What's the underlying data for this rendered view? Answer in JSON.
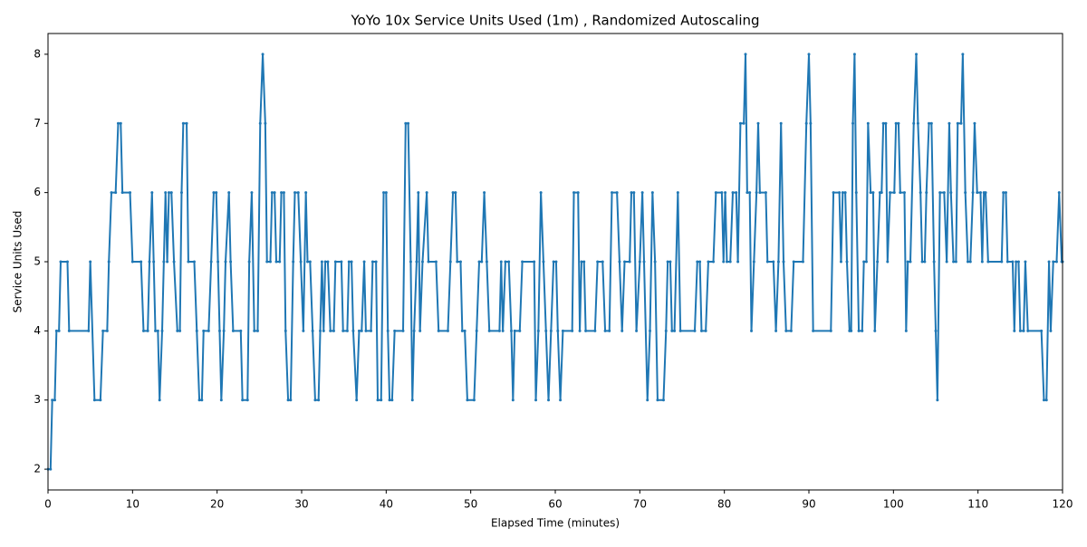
{
  "chart_data": {
    "type": "line",
    "title": "YoYo 10x Service Units Used (1m) , Randomized Autoscaling",
    "xlabel": "Elapsed Time (minutes)",
    "ylabel": "Service Units Used",
    "xlim": [
      0,
      120
    ],
    "ylim": [
      1.7,
      8.3
    ],
    "xticks": [
      0,
      10,
      20,
      30,
      40,
      50,
      60,
      70,
      80,
      90,
      100,
      110,
      120
    ],
    "yticks": [
      2,
      3,
      4,
      5,
      6,
      7,
      8
    ],
    "grid": false,
    "series": [
      {
        "color": "#1f77b4",
        "x": [
          0,
          0.3,
          0.5,
          0.8,
          1.0,
          1.3,
          1.5,
          2.3,
          2.5,
          4.8,
          5.0,
          5.5,
          6.2,
          6.5,
          7.0,
          7.2,
          7.5,
          8.0,
          8.3,
          8.6,
          8.8,
          9.7,
          10.0,
          11.0,
          11.3,
          11.8,
          12.0,
          12.3,
          12.5,
          12.7,
          13.0,
          13.2,
          13.5,
          13.7,
          13.9,
          14.1,
          14.3,
          14.6,
          14.9,
          15.3,
          15.6,
          15.8,
          16.0,
          16.4,
          16.6,
          17.3,
          17.6,
          17.9,
          18.2,
          18.4,
          19.0,
          19.3,
          19.6,
          19.9,
          20.1,
          20.3,
          20.5,
          20.8,
          21.0,
          21.4,
          21.6,
          21.9,
          22.8,
          23.0,
          23.6,
          23.8,
          24.1,
          24.4,
          24.8,
          25.1,
          25.4,
          25.7,
          25.9,
          26.3,
          26.5,
          26.8,
          27.0,
          27.4,
          27.6,
          27.9,
          28.1,
          28.4,
          28.7,
          29.0,
          29.2,
          29.6,
          29.9,
          30.2,
          30.5,
          30.7,
          31.0,
          31.3,
          31.6,
          32.0,
          32.2,
          32.4,
          32.6,
          32.8,
          33.1,
          33.4,
          33.8,
          34.0,
          34.7,
          34.9,
          35.4,
          35.6,
          35.9,
          36.1,
          36.5,
          36.8,
          37.1,
          37.4,
          37.6,
          38.2,
          38.4,
          38.8,
          39.0,
          39.4,
          39.7,
          40.0,
          40.2,
          40.4,
          40.7,
          41.0,
          42.0,
          42.3,
          42.6,
          42.9,
          43.1,
          43.3,
          43.6,
          43.8,
          44.0,
          44.3,
          44.8,
          45.0,
          45.9,
          46.2,
          47.3,
          47.6,
          47.9,
          48.2,
          48.4,
          48.8,
          49.0,
          49.3,
          49.6,
          50.4,
          50.7,
          51.0,
          51.3,
          51.6,
          51.9,
          52.2,
          53.4,
          53.6,
          53.8,
          54.1,
          54.5,
          54.8,
          55.0,
          55.2,
          55.8,
          56.1,
          57.5,
          57.7,
          58.0,
          58.3,
          58.6,
          58.9,
          59.2,
          59.5,
          59.8,
          60.1,
          60.3,
          60.6,
          60.9,
          62.0,
          62.2,
          62.7,
          62.9,
          63.1,
          63.4,
          63.6,
          64.7,
          65.0,
          65.6,
          65.9,
          66.4,
          66.7,
          67.3,
          67.6,
          67.9,
          68.2,
          68.8,
          69.0,
          69.3,
          69.6,
          70.0,
          70.3,
          70.5,
          70.9,
          71.2,
          71.5,
          71.8,
          72.1,
          72.8,
          73.1,
          73.3,
          73.6,
          73.8,
          74.1,
          74.5,
          74.8,
          76.5,
          76.8,
          77.1,
          77.3,
          77.8,
          78.1,
          78.7,
          79.0,
          79.7,
          79.9,
          80.1,
          80.3,
          80.7,
          81.0,
          81.4,
          81.6,
          81.9,
          82.3,
          82.5,
          82.7,
          83.0,
          83.2,
          83.5,
          83.8,
          84.0,
          84.2,
          84.9,
          85.1,
          85.8,
          86.1,
          86.4,
          86.7,
          87.0,
          87.3,
          87.9,
          88.2,
          89.3,
          89.7,
          90.0,
          90.2,
          90.5,
          92.6,
          92.9,
          93.6,
          93.8,
          94.0,
          94.3,
          94.5,
          94.8,
          95.0,
          95.2,
          95.4,
          95.6,
          95.9,
          96.3,
          96.5,
          96.8,
          97.0,
          97.3,
          97.6,
          97.8,
          98.1,
          98.4,
          98.6,
          98.8,
          99.1,
          99.3,
          99.6,
          100.1,
          100.3,
          100.6,
          100.8,
          101.3,
          101.5,
          101.7,
          102.0,
          102.4,
          102.7,
          102.9,
          103.2,
          103.4,
          103.7,
          103.9,
          104.2,
          104.5,
          104.8,
          105.0,
          105.2,
          105.5,
          106.0,
          106.3,
          106.6,
          106.8,
          107.1,
          107.4,
          107.6,
          108.0,
          108.2,
          108.5,
          108.8,
          109.1,
          109.4,
          109.6,
          109.9,
          110.3,
          110.5,
          110.7,
          110.9,
          111.2,
          112.8,
          113.0,
          113.3,
          113.5,
          114.1,
          114.3,
          114.5,
          114.8,
          115.0,
          115.4,
          115.6,
          115.9,
          117.5,
          117.8,
          118.1,
          118.4,
          118.6,
          118.9,
          119.3,
          119.6,
          119.9,
          120.0
        ],
        "values": [
          2,
          2,
          3,
          3,
          4,
          4,
          5,
          5,
          4,
          4,
          5,
          3,
          3,
          4,
          4,
          5,
          6,
          6,
          7,
          7,
          6,
          6,
          5,
          5,
          4,
          4,
          5,
          6,
          5,
          4,
          4,
          3,
          4,
          5,
          6,
          5,
          6,
          6,
          5,
          4,
          4,
          6,
          7,
          7,
          5,
          5,
          4,
          3,
          3,
          4,
          4,
          5,
          6,
          6,
          5,
          4,
          3,
          4,
          5,
          6,
          5,
          4,
          4,
          3,
          3,
          5,
          6,
          4,
          4,
          7,
          8,
          7,
          5,
          5,
          6,
          6,
          5,
          5,
          6,
          6,
          4,
          3,
          3,
          5,
          6,
          6,
          5,
          4,
          6,
          5,
          5,
          4,
          3,
          3,
          4,
          5,
          4,
          5,
          5,
          4,
          4,
          5,
          5,
          4,
          4,
          5,
          5,
          4,
          3,
          4,
          4,
          5,
          4,
          4,
          5,
          5,
          3,
          3,
          6,
          6,
          4,
          3,
          3,
          4,
          4,
          7,
          7,
          5,
          3,
          4,
          5,
          6,
          4,
          5,
          6,
          5,
          5,
          4,
          4,
          5,
          6,
          6,
          5,
          5,
          4,
          4,
          3,
          3,
          4,
          5,
          5,
          6,
          5,
          4,
          4,
          5,
          4,
          5,
          5,
          4,
          3,
          4,
          4,
          5,
          5,
          3,
          4,
          6,
          5,
          4,
          3,
          4,
          5,
          5,
          4,
          3,
          4,
          4,
          6,
          6,
          4,
          5,
          5,
          4,
          4,
          5,
          5,
          4,
          4,
          6,
          6,
          5,
          4,
          5,
          5,
          6,
          6,
          4,
          5,
          6,
          5,
          3,
          4,
          6,
          5,
          3,
          3,
          4,
          5,
          5,
          4,
          4,
          6,
          4,
          4,
          5,
          5,
          4,
          4,
          5,
          5,
          6,
          6,
          5,
          6,
          5,
          5,
          6,
          6,
          5,
          7,
          7,
          8,
          6,
          6,
          4,
          5,
          6,
          7,
          6,
          6,
          5,
          5,
          4,
          5,
          7,
          5,
          4,
          4,
          5,
          5,
          7,
          8,
          7,
          4,
          4,
          6,
          6,
          5,
          6,
          6,
          5,
          4,
          4,
          7,
          8,
          6,
          4,
          4,
          5,
          5,
          7,
          6,
          6,
          4,
          5,
          6,
          6,
          7,
          7,
          5,
          6,
          6,
          7,
          7,
          6,
          6,
          4,
          5,
          5,
          7,
          8,
          7,
          6,
          5,
          5,
          6,
          7,
          7,
          5,
          4,
          3,
          6,
          6,
          5,
          7,
          6,
          5,
          5,
          7,
          7,
          8,
          6,
          5,
          5,
          6,
          7,
          6,
          6,
          5,
          6,
          6,
          5,
          5,
          6,
          6,
          5,
          5,
          4,
          5,
          5,
          4,
          4,
          5,
          4,
          4,
          3,
          3,
          5,
          4,
          5,
          5,
          6,
          5,
          5
        ]
      }
    ]
  }
}
